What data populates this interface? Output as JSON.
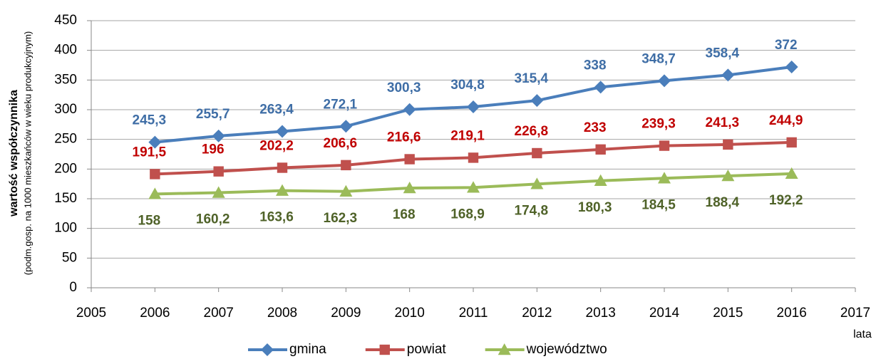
{
  "chart_data": {
    "type": "line",
    "ylabel": "wartość współczynnika",
    "ylabel2": "(podm.gosp. na 1000 mieszkańców w wieku produkcyjnym)",
    "xlabel": "lata",
    "x": [
      2006,
      2007,
      2008,
      2009,
      2010,
      2011,
      2012,
      2013,
      2014,
      2015,
      2016
    ],
    "xlim": [
      2005,
      2017
    ],
    "xticks": [
      2005,
      2006,
      2007,
      2008,
      2009,
      2010,
      2011,
      2012,
      2013,
      2014,
      2015,
      2016,
      2017
    ],
    "ylim": [
      0,
      450
    ],
    "yticks": [
      0,
      50,
      100,
      150,
      200,
      250,
      300,
      350,
      400,
      450
    ],
    "grid": true,
    "legend": "bottom",
    "series": [
      {
        "name": "gmina",
        "color": "#4a7ebb",
        "label_color": "#3f6ea6",
        "marker": "diamond",
        "label_position": "above",
        "values": [
          245.3,
          255.7,
          263.4,
          272.1,
          300.3,
          304.8,
          315.4,
          338,
          348.7,
          358.4,
          372
        ],
        "value_labels": [
          "245,3",
          "255,7",
          "263,4",
          "272,1",
          "300,3",
          "304,8",
          "315,4",
          "338",
          "348,7",
          "358,4",
          "372"
        ]
      },
      {
        "name": "powiat",
        "color": "#c0504d",
        "label_color": "#c00000",
        "marker": "square",
        "label_position": "above",
        "values": [
          191.5,
          196,
          202.2,
          206.6,
          216.6,
          219.1,
          226.8,
          233,
          239.3,
          241.3,
          244.9
        ],
        "value_labels": [
          "191,5",
          "196",
          "202,2",
          "206,6",
          "216,6",
          "219,1",
          "226,8",
          "233",
          "239,3",
          "241,3",
          "244,9"
        ]
      },
      {
        "name": "województwo",
        "color": "#9bbb59",
        "label_color": "#4f6228",
        "marker": "triangle",
        "label_position": "below",
        "values": [
          158,
          160.2,
          163.6,
          162.3,
          168,
          168.9,
          174.8,
          180.3,
          184.5,
          188.4,
          192.2
        ],
        "value_labels": [
          "158",
          "160,2",
          "163,6",
          "162,3",
          "168",
          "168,9",
          "174,8",
          "180,3",
          "184,5",
          "188,4",
          "192,2"
        ]
      }
    ]
  }
}
